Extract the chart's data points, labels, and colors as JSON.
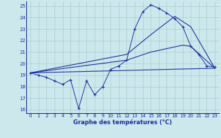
{
  "xlabel": "Graphe des températures (°C)",
  "bg_color": "#cce8ec",
  "grid_color": "#aacccc",
  "line_color": "#1a2f9e",
  "xlim": [
    -0.5,
    23.5
  ],
  "ylim": [
    15.7,
    25.4
  ],
  "yticks": [
    16,
    17,
    18,
    19,
    20,
    21,
    22,
    23,
    24,
    25
  ],
  "xticks": [
    0,
    1,
    2,
    3,
    4,
    5,
    6,
    7,
    8,
    9,
    10,
    11,
    12,
    13,
    14,
    15,
    16,
    17,
    18,
    19,
    20,
    21,
    22,
    23
  ],
  "series1_x": [
    0,
    1,
    2,
    3,
    4,
    5,
    6,
    7,
    8,
    9,
    10,
    11,
    12,
    13,
    14,
    15,
    16,
    17,
    18,
    19,
    20,
    21,
    22,
    23
  ],
  "series1_y": [
    19.2,
    19.0,
    18.8,
    18.5,
    18.2,
    18.6,
    16.1,
    18.5,
    17.3,
    18.0,
    19.5,
    19.8,
    20.3,
    23.0,
    24.5,
    25.1,
    24.8,
    24.4,
    23.9,
    23.2,
    21.5,
    20.8,
    19.8,
    19.7
  ],
  "series2_x": [
    0,
    23
  ],
  "series2_y": [
    19.2,
    19.6
  ],
  "series3_x": [
    0,
    12,
    15,
    19,
    20,
    23
  ],
  "series3_y": [
    19.2,
    20.3,
    21.0,
    21.6,
    21.5,
    19.6
  ],
  "series4_x": [
    0,
    12,
    15,
    18,
    20,
    23
  ],
  "series4_y": [
    19.2,
    20.8,
    22.5,
    24.1,
    23.2,
    19.6
  ]
}
